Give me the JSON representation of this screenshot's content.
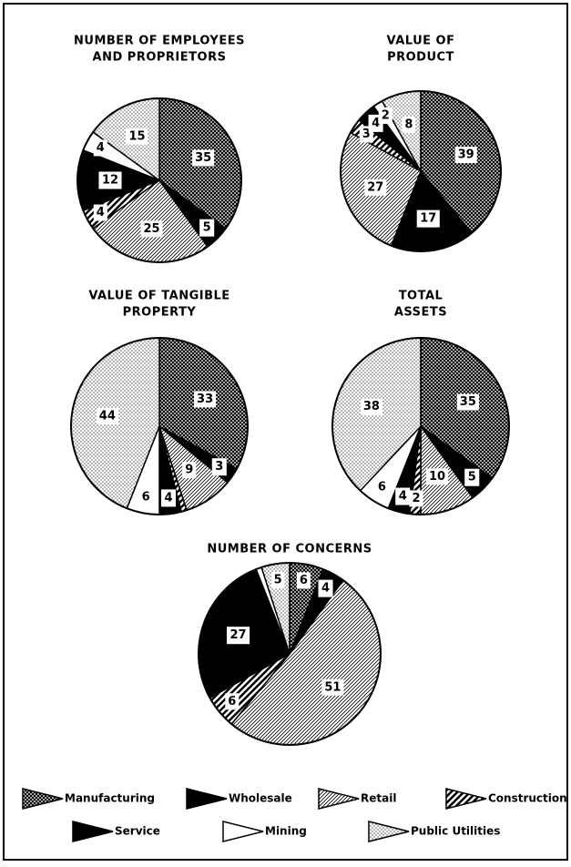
{
  "chart_data": [
    {
      "type": "pie",
      "title": [
        "NUMBER OF EMPLOYEES",
        "AND PROPRIETORS"
      ],
      "values": [
        35,
        5,
        25,
        4,
        12,
        4,
        15
      ],
      "value_labels": [
        "35",
        "5",
        "25",
        "4",
        "12",
        "4",
        "15"
      ]
    },
    {
      "type": "pie",
      "title": [
        "VALUE OF",
        "PRODUCT"
      ],
      "values": [
        39,
        17,
        27,
        3,
        4,
        2,
        8
      ],
      "value_labels": [
        "39",
        "17",
        "27",
        "3",
        "4",
        "2",
        "8"
      ]
    },
    {
      "type": "pie",
      "title": [
        "VALUE OF TANGIBLE",
        "PROPERTY"
      ],
      "values": [
        33,
        3,
        9,
        1,
        4,
        6,
        44
      ],
      "value_labels": [
        "33",
        "3",
        "9",
        null,
        "4",
        "6",
        "44"
      ]
    },
    {
      "type": "pie",
      "title": [
        "TOTAL",
        "ASSETS"
      ],
      "values": [
        35,
        5,
        10,
        2,
        4,
        6,
        38
      ],
      "value_labels": [
        "35",
        "5",
        "10",
        "2",
        "4",
        "6",
        "38"
      ]
    },
    {
      "type": "pie",
      "title": [
        "NUMBER OF CONCERNS"
      ],
      "values": [
        6,
        4,
        51,
        6,
        27,
        1,
        5
      ],
      "value_labels": [
        "6",
        "4",
        "51",
        "6",
        "27",
        null,
        "5"
      ]
    }
  ],
  "legend": {
    "labels": [
      "Manufacturing",
      "Wholesale",
      "Retail",
      "Construction",
      "Service",
      "Mining",
      "Public Utilities"
    ],
    "fills": [
      "crosshatch",
      "solid",
      "hatch",
      "stripe",
      "solid",
      "blank",
      "dots"
    ]
  }
}
